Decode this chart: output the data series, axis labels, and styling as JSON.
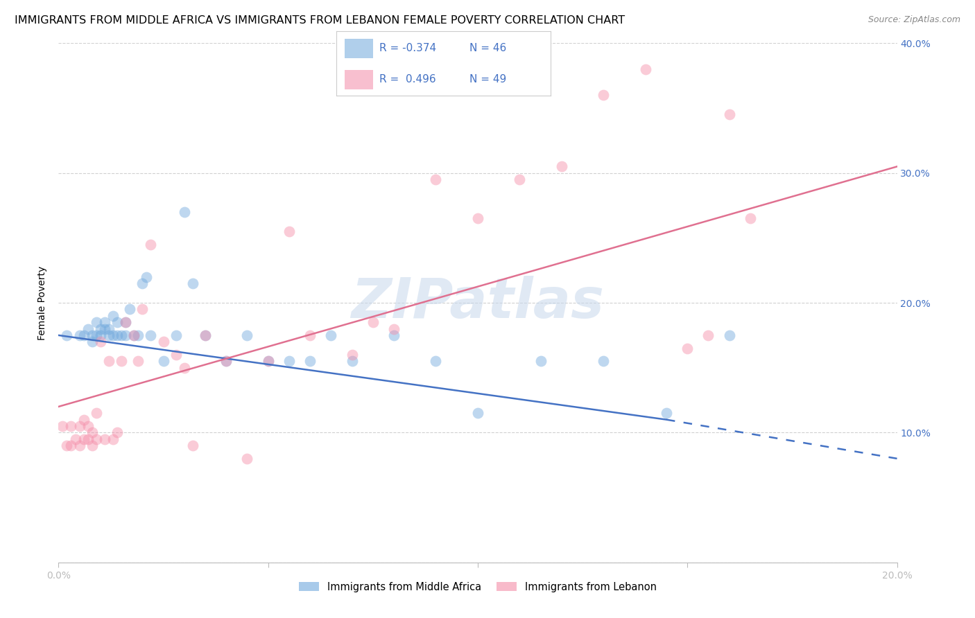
{
  "title": "IMMIGRANTS FROM MIDDLE AFRICA VS IMMIGRANTS FROM LEBANON FEMALE POVERTY CORRELATION CHART",
  "source": "Source: ZipAtlas.com",
  "ylabel": "Female Poverty",
  "x_min": 0.0,
  "x_max": 0.2,
  "y_min": 0.0,
  "y_max": 0.4,
  "x_ticks": [
    0.0,
    0.05,
    0.1,
    0.15,
    0.2
  ],
  "x_tick_labels": [
    "0.0%",
    "",
    "",
    "",
    "20.0%"
  ],
  "y_ticks": [
    0.0,
    0.1,
    0.2,
    0.3,
    0.4
  ],
  "y_tick_labels": [
    "",
    "10.0%",
    "20.0%",
    "30.0%",
    "40.0%"
  ],
  "legend_label_blue": "Immigrants from Middle Africa",
  "legend_label_pink": "Immigrants from Lebanon",
  "legend_r_blue": "R = -0.374",
  "legend_n_blue": "N = 46",
  "legend_r_pink": "R =  0.496",
  "legend_n_pink": "N = 49",
  "watermark": "ZIPatlas",
  "blue_scatter_x": [
    0.002,
    0.005,
    0.006,
    0.007,
    0.008,
    0.008,
    0.009,
    0.009,
    0.01,
    0.01,
    0.011,
    0.011,
    0.012,
    0.012,
    0.013,
    0.013,
    0.014,
    0.014,
    0.015,
    0.016,
    0.016,
    0.017,
    0.018,
    0.019,
    0.02,
    0.021,
    0.022,
    0.025,
    0.028,
    0.03,
    0.032,
    0.035,
    0.04,
    0.045,
    0.05,
    0.055,
    0.06,
    0.065,
    0.07,
    0.08,
    0.09,
    0.1,
    0.115,
    0.13,
    0.145,
    0.16
  ],
  "blue_scatter_y": [
    0.175,
    0.175,
    0.175,
    0.18,
    0.17,
    0.175,
    0.175,
    0.185,
    0.175,
    0.18,
    0.18,
    0.185,
    0.175,
    0.18,
    0.175,
    0.19,
    0.175,
    0.185,
    0.175,
    0.185,
    0.175,
    0.195,
    0.175,
    0.175,
    0.215,
    0.22,
    0.175,
    0.155,
    0.175,
    0.27,
    0.215,
    0.175,
    0.155,
    0.175,
    0.155,
    0.155,
    0.155,
    0.175,
    0.155,
    0.175,
    0.155,
    0.115,
    0.155,
    0.155,
    0.115,
    0.175
  ],
  "pink_scatter_x": [
    0.001,
    0.002,
    0.003,
    0.003,
    0.004,
    0.005,
    0.005,
    0.006,
    0.006,
    0.007,
    0.007,
    0.008,
    0.008,
    0.009,
    0.009,
    0.01,
    0.011,
    0.012,
    0.013,
    0.014,
    0.015,
    0.016,
    0.018,
    0.019,
    0.02,
    0.022,
    0.025,
    0.028,
    0.03,
    0.032,
    0.035,
    0.04,
    0.045,
    0.05,
    0.055,
    0.06,
    0.07,
    0.075,
    0.08,
    0.09,
    0.1,
    0.11,
    0.12,
    0.13,
    0.14,
    0.15,
    0.155,
    0.16,
    0.165
  ],
  "pink_scatter_y": [
    0.105,
    0.09,
    0.09,
    0.105,
    0.095,
    0.09,
    0.105,
    0.095,
    0.11,
    0.095,
    0.105,
    0.09,
    0.1,
    0.095,
    0.115,
    0.17,
    0.095,
    0.155,
    0.095,
    0.1,
    0.155,
    0.185,
    0.175,
    0.155,
    0.195,
    0.245,
    0.17,
    0.16,
    0.15,
    0.09,
    0.175,
    0.155,
    0.08,
    0.155,
    0.255,
    0.175,
    0.16,
    0.185,
    0.18,
    0.295,
    0.265,
    0.295,
    0.305,
    0.36,
    0.38,
    0.165,
    0.175,
    0.345,
    0.265
  ],
  "blue_line_x0": 0.0,
  "blue_line_x1": 0.145,
  "blue_line_x2": 0.2,
  "blue_line_y0": 0.175,
  "blue_line_y1": 0.11,
  "blue_line_y2": 0.08,
  "pink_line_x0": 0.0,
  "pink_line_x1": 0.2,
  "pink_line_y0": 0.12,
  "pink_line_y1": 0.305,
  "blue_color": "#6fa8dc",
  "pink_color": "#f48ca8",
  "blue_line_color": "#4472c4",
  "pink_line_color": "#e07090",
  "axis_tick_color": "#4472c4",
  "grid_color": "#d0d0d0",
  "background_color": "#ffffff",
  "title_fontsize": 11.5,
  "source_fontsize": 9,
  "axis_label_fontsize": 10,
  "tick_fontsize": 10,
  "scatter_size": 130,
  "scatter_alpha": 0.45
}
